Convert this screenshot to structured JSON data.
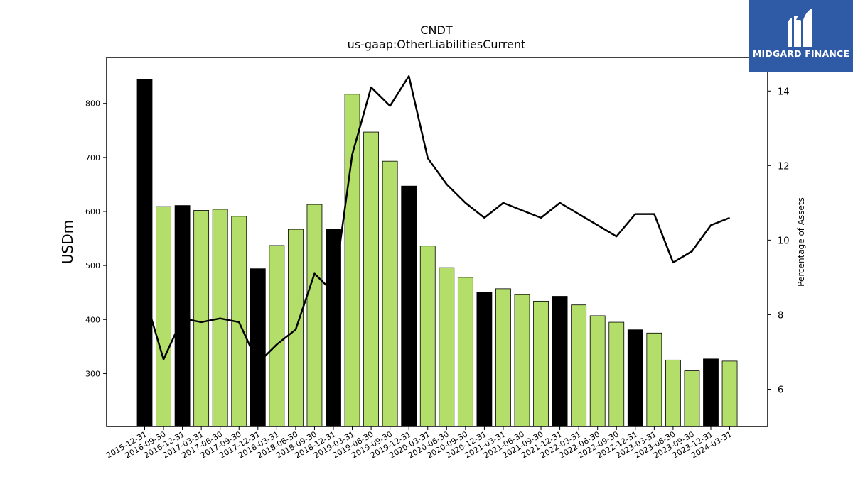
{
  "brand": {
    "name": "MIDGARD FINANCE",
    "logo_icon": "midgard-logo-icon",
    "background_color": "#2f5aa5"
  },
  "chart_data": {
    "type": "bar",
    "title": "CNDT",
    "subtitle": "us-gaap:OtherLiabilitiesCurrent",
    "ylabel": "USDm",
    "y2label": "Percentage of Assets",
    "ylim": [
      202,
      885
    ],
    "y2lim": [
      5,
      14.9
    ],
    "yticks": [
      300,
      400,
      500,
      600,
      700,
      800
    ],
    "y2ticks": [
      6,
      8,
      10,
      12,
      14
    ],
    "grid": false,
    "categories": [
      "2015-12-31",
      "2016-09-30",
      "2016-12-31",
      "2017-03-31",
      "2017-06-30",
      "2017-09-30",
      "2017-12-31",
      "2018-03-31",
      "2018-06-30",
      "2018-09-30",
      "2018-12-31",
      "2019-03-31",
      "2019-06-30",
      "2019-09-30",
      "2019-12-31",
      "2020-03-31",
      "2020-06-30",
      "2020-09-30",
      "2020-12-31",
      "2021-03-31",
      "2021-06-30",
      "2021-09-30",
      "2021-12-31",
      "2022-03-31",
      "2022-06-30",
      "2022-09-30",
      "2022-12-31",
      "2023-03-31",
      "2023-06-30",
      "2023-09-30",
      "2023-12-31",
      "2024-03-31"
    ],
    "series": [
      {
        "type": "bar",
        "axis": "left",
        "values": [
          845,
          609,
          611,
          602,
          604,
          591,
          494,
          537,
          567,
          613,
          567,
          817,
          747,
          693,
          647,
          536,
          496,
          478,
          450,
          457,
          446,
          434,
          443,
          427,
          407,
          395,
          381,
          375,
          325,
          305,
          327,
          323
        ]
      },
      {
        "type": "line",
        "axis": "right",
        "color": "#000000",
        "values": [
          8.5,
          6.8,
          7.9,
          7.8,
          7.9,
          7.8,
          6.7,
          7.2,
          7.6,
          9.1,
          8.6,
          12.3,
          14.1,
          13.6,
          14.4,
          12.2,
          11.5,
          11.0,
          10.6,
          11.0,
          10.8,
          10.6,
          11.0,
          10.7,
          10.4,
          10.1,
          10.7,
          10.7,
          9.4,
          9.7,
          10.4,
          10.6
        ]
      }
    ],
    "bar_colors": {
      "year_end": "#000000",
      "quarter": "#b3de69"
    }
  }
}
